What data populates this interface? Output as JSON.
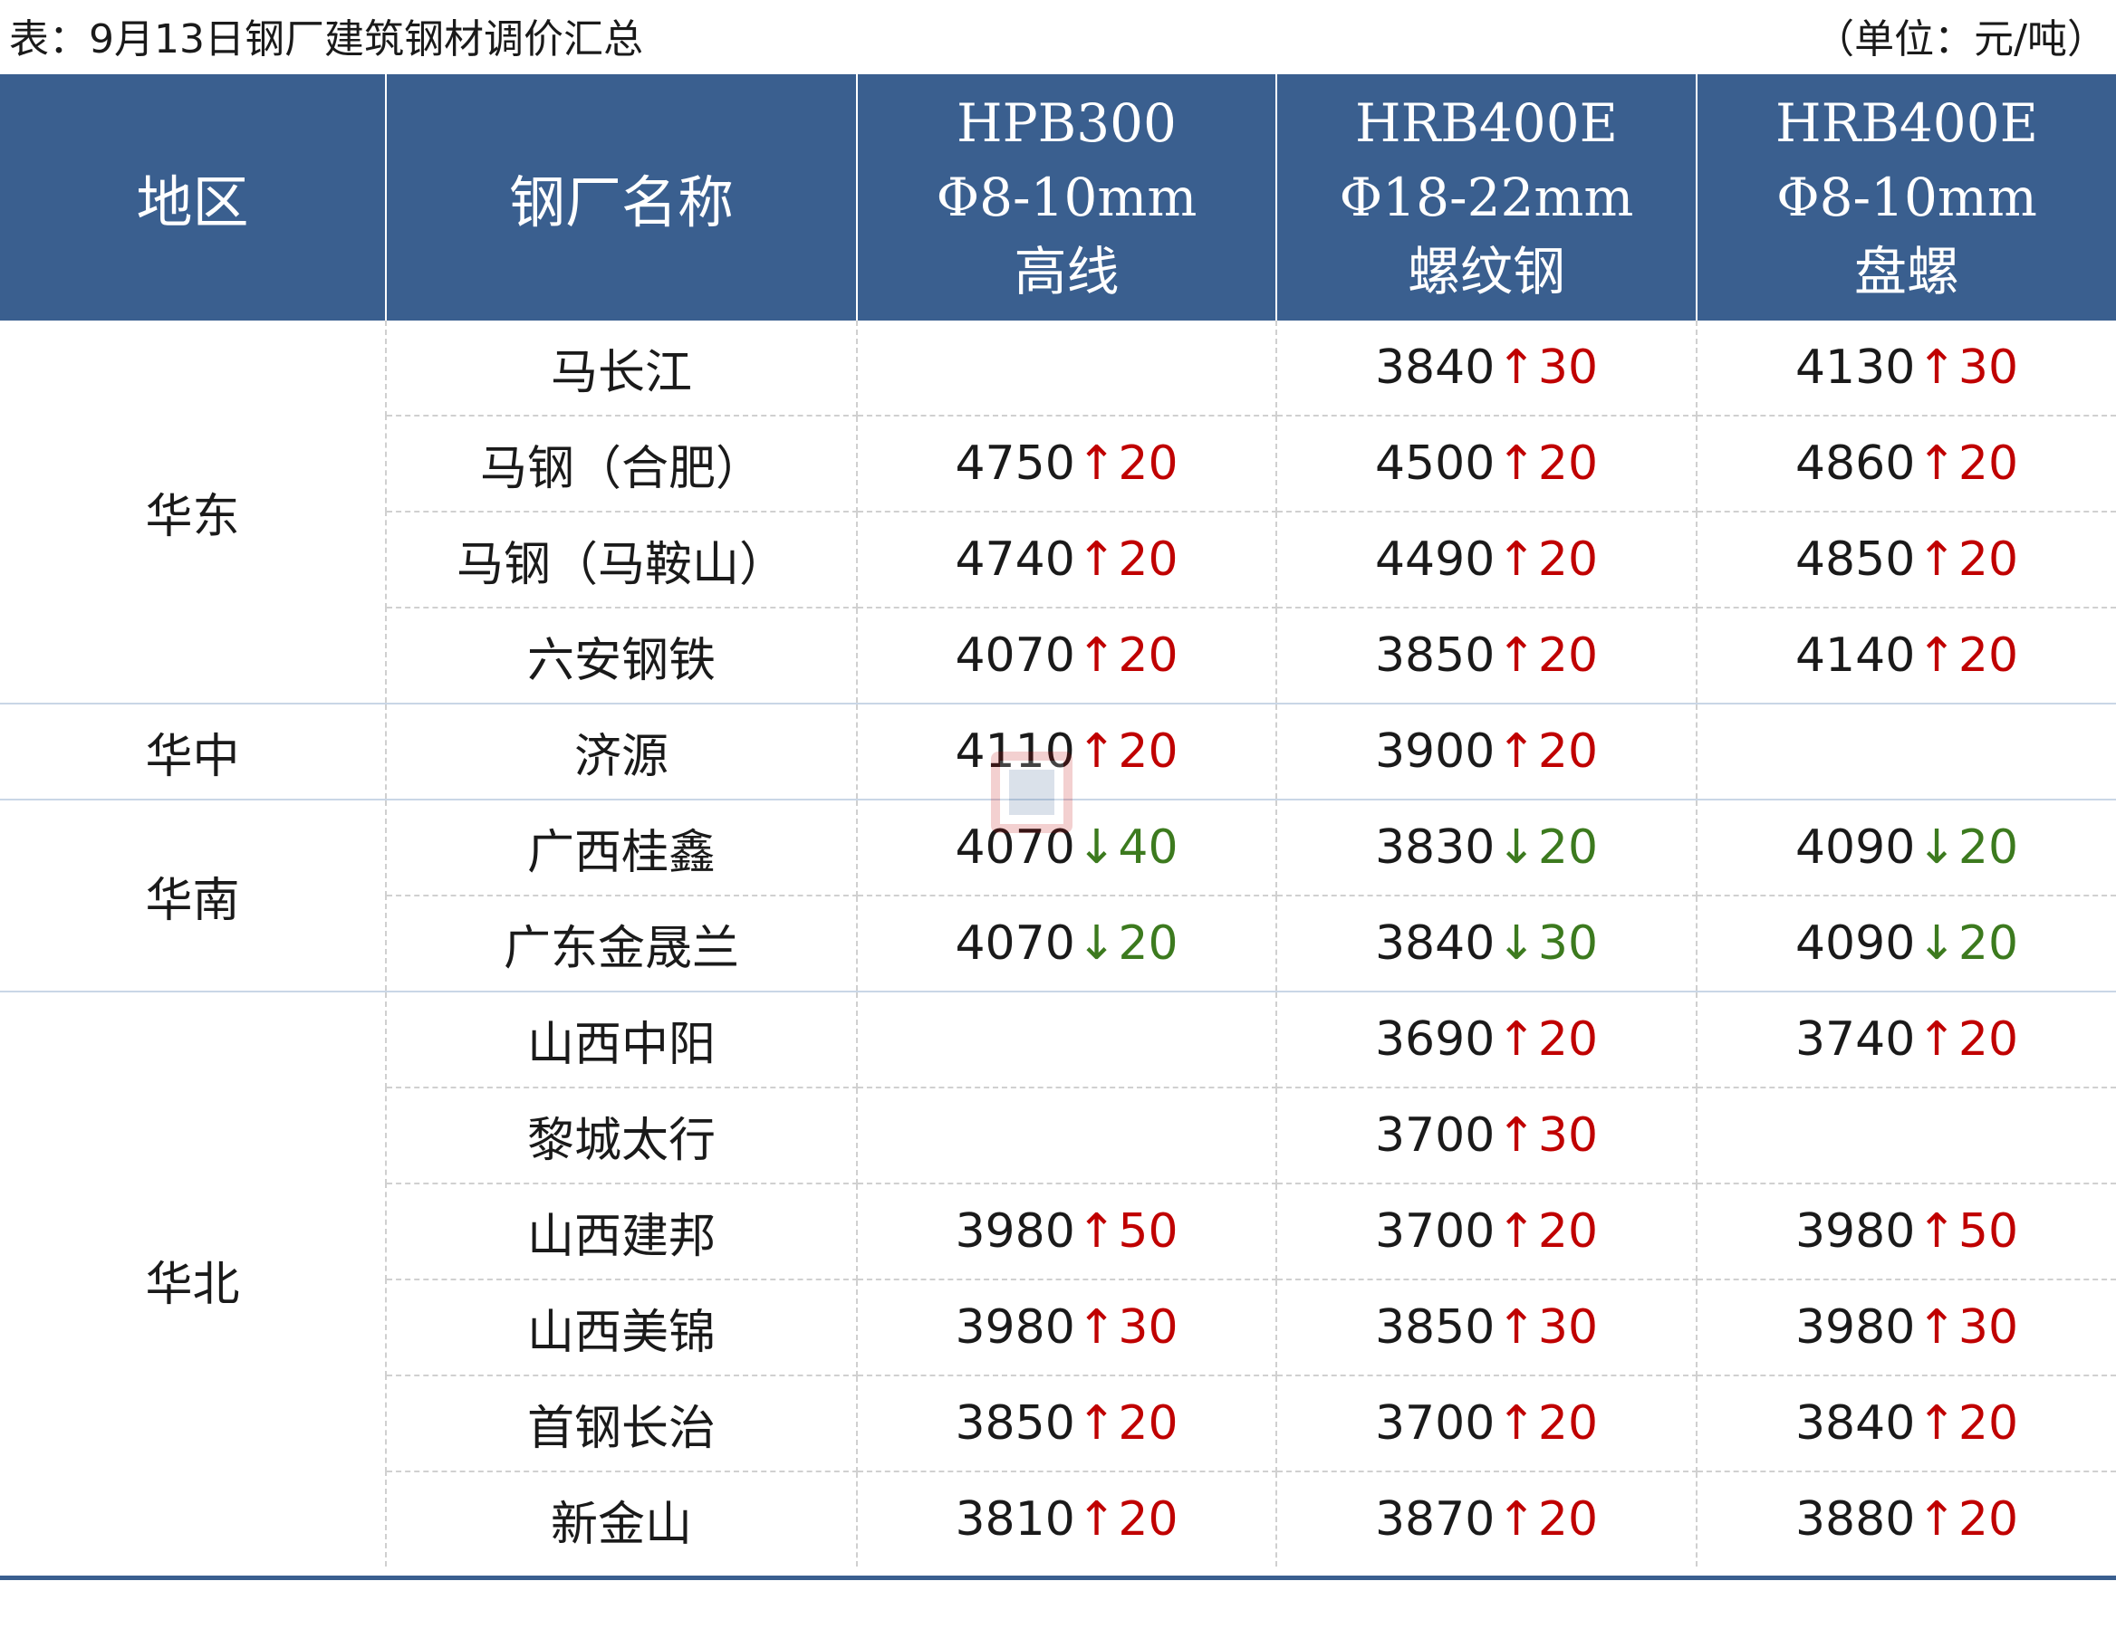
{
  "caption": "表：9月13日钢厂建筑钢材调价汇总",
  "unit": "（单位：元/吨）",
  "headers": {
    "region": "地区",
    "mill": "钢厂名称",
    "col1": [
      "HPB300",
      "Φ8-10mm",
      "高线"
    ],
    "col2": [
      "HRB400E",
      "Φ18-22mm",
      "螺纹钢"
    ],
    "col3": [
      "HRB400E",
      "Φ8-10mm",
      "盘螺"
    ]
  },
  "rows": [
    {
      "region": "华东",
      "mill": "马长江",
      "c1": null,
      "c2": {
        "price": "3840",
        "dir": "up",
        "chg": "30"
      },
      "c3": {
        "price": "4130",
        "dir": "up",
        "chg": "30"
      }
    },
    {
      "region": "华东",
      "mill": "马钢（合肥）",
      "c1": {
        "price": "4750",
        "dir": "up",
        "chg": "20"
      },
      "c2": {
        "price": "4500",
        "dir": "up",
        "chg": "20"
      },
      "c3": {
        "price": "4860",
        "dir": "up",
        "chg": "20"
      }
    },
    {
      "region": "华东",
      "mill": "马钢（马鞍山）",
      "c1": {
        "price": "4740",
        "dir": "up",
        "chg": "20"
      },
      "c2": {
        "price": "4490",
        "dir": "up",
        "chg": "20"
      },
      "c3": {
        "price": "4850",
        "dir": "up",
        "chg": "20"
      }
    },
    {
      "region": "华东",
      "mill": "六安钢铁",
      "c1": {
        "price": "4070",
        "dir": "up",
        "chg": "20"
      },
      "c2": {
        "price": "3850",
        "dir": "up",
        "chg": "20"
      },
      "c3": {
        "price": "4140",
        "dir": "up",
        "chg": "20"
      }
    },
    {
      "region": "华中",
      "mill": "济源",
      "c1": {
        "price": "4110",
        "dir": "up",
        "chg": "20"
      },
      "c2": {
        "price": "3900",
        "dir": "up",
        "chg": "20"
      },
      "c3": null
    },
    {
      "region": "华南",
      "mill": "广西桂鑫",
      "c1": {
        "price": "4070",
        "dir": "down",
        "chg": "40"
      },
      "c2": {
        "price": "3830",
        "dir": "down",
        "chg": "20"
      },
      "c3": {
        "price": "4090",
        "dir": "down",
        "chg": "20"
      }
    },
    {
      "region": "华南",
      "mill": "广东金晟兰",
      "c1": {
        "price": "4070",
        "dir": "down",
        "chg": "20"
      },
      "c2": {
        "price": "3840",
        "dir": "down",
        "chg": "30"
      },
      "c3": {
        "price": "4090",
        "dir": "down",
        "chg": "20"
      }
    },
    {
      "region": "华北",
      "mill": "山西中阳",
      "c1": null,
      "c2": {
        "price": "3690",
        "dir": "up",
        "chg": "20"
      },
      "c3": {
        "price": "3740",
        "dir": "up",
        "chg": "20"
      }
    },
    {
      "region": "华北",
      "mill": "黎城太行",
      "c1": null,
      "c2": {
        "price": "3700",
        "dir": "up",
        "chg": "30"
      },
      "c3": null
    },
    {
      "region": "华北",
      "mill": "山西建邦",
      "c1": {
        "price": "3980",
        "dir": "up",
        "chg": "50"
      },
      "c2": {
        "price": "3700",
        "dir": "up",
        "chg": "20"
      },
      "c3": {
        "price": "3980",
        "dir": "up",
        "chg": "50"
      }
    },
    {
      "region": "华北",
      "mill": "山西美锦",
      "c1": {
        "price": "3980",
        "dir": "up",
        "chg": "30"
      },
      "c2": {
        "price": "3850",
        "dir": "up",
        "chg": "30"
      },
      "c3": {
        "price": "3980",
        "dir": "up",
        "chg": "30"
      }
    },
    {
      "region": "华北",
      "mill": "首钢长治",
      "c1": {
        "price": "3850",
        "dir": "up",
        "chg": "20"
      },
      "c2": {
        "price": "3700",
        "dir": "up",
        "chg": "20"
      },
      "c3": {
        "price": "3840",
        "dir": "up",
        "chg": "20"
      }
    },
    {
      "region": "华北",
      "mill": "新金山",
      "c1": {
        "price": "3810",
        "dir": "up",
        "chg": "20"
      },
      "c2": {
        "price": "3870",
        "dir": "up",
        "chg": "20"
      },
      "c3": {
        "price": "3880",
        "dir": "up",
        "chg": "20"
      }
    }
  ],
  "arrows": {
    "up": "↑",
    "down": "↓"
  },
  "colors": {
    "header_bg": "#3a5f8f",
    "up": "#c00000",
    "down": "#3c7a1e"
  }
}
